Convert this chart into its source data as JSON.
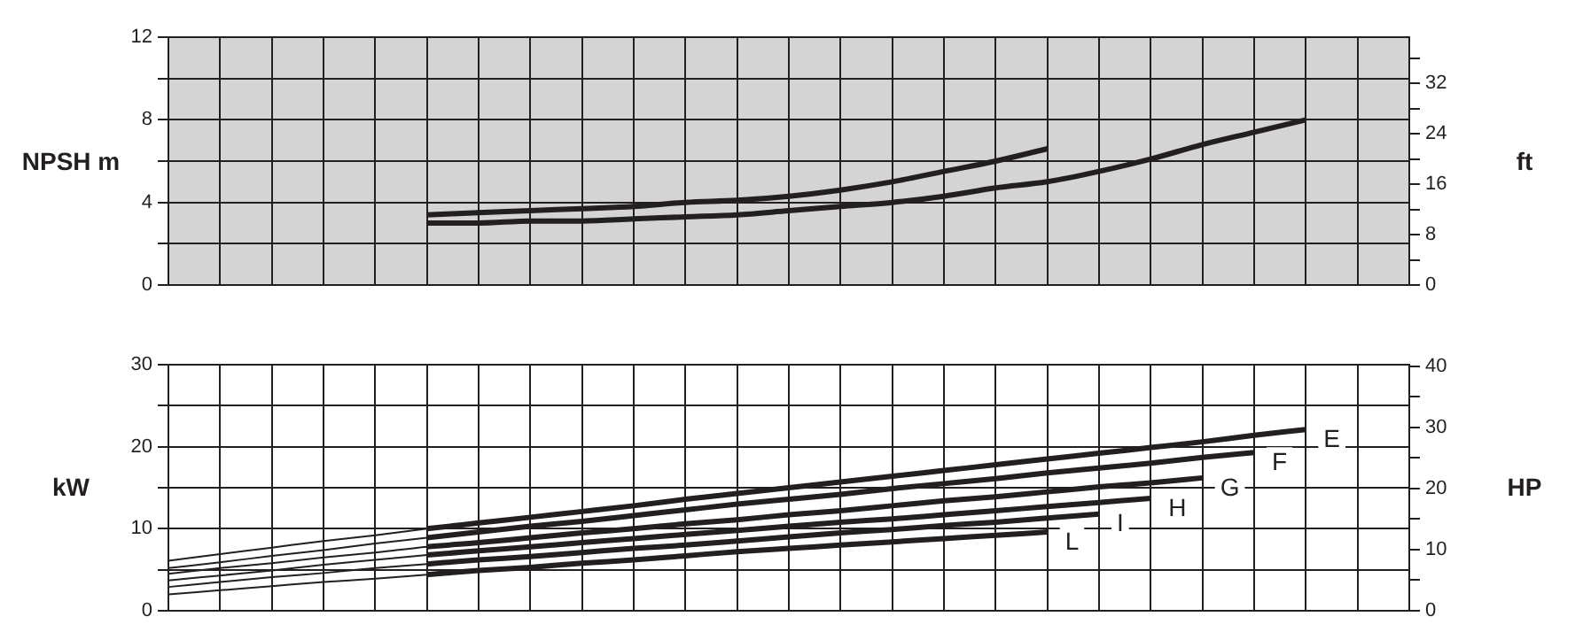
{
  "chart_data": [
    {
      "type": "line",
      "ylabel": "NPSH m",
      "y2label": "ft",
      "categories": [
        null,
        null,
        null,
        null,
        null,
        null,
        null,
        null,
        null,
        null,
        null,
        null,
        null,
        null,
        null,
        null,
        null,
        null,
        null,
        null,
        null,
        null,
        null,
        null,
        null
      ],
      "ylim": [
        0,
        12
      ],
      "yticks": [
        0,
        {
          "value": 2,
          "label": null
        },
        4,
        {
          "value": 6,
          "label": null
        },
        8,
        {
          "value": 10,
          "label": null
        },
        12
      ],
      "y2lim": [
        0,
        39.37
      ],
      "y2ticks": [
        0,
        {
          "value": 4,
          "label": null
        },
        8,
        {
          "value": 12,
          "label": null
        },
        16,
        {
          "value": 20,
          "label": null
        },
        24,
        {
          "value": 28,
          "label": null
        },
        32,
        {
          "value": 36,
          "label": null
        }
      ],
      "grid": true,
      "legend": false,
      "marker": "none",
      "line_style": "solid",
      "series": [
        {
          "color": "#231f20",
          "values": [
            null,
            null,
            null,
            null,
            null,
            3.4,
            3.5,
            3.6,
            3.7,
            3.8,
            4.0,
            4.1,
            4.3,
            4.6,
            5.0,
            5.5,
            6.0,
            6.6,
            null,
            null,
            null,
            null,
            null,
            null,
            null
          ]
        },
        {
          "color": "#231f20",
          "values": [
            null,
            null,
            null,
            null,
            null,
            3.0,
            3.0,
            3.1,
            3.1,
            3.2,
            3.3,
            3.4,
            3.6,
            3.8,
            4.0,
            4.3,
            4.7,
            5.0,
            5.5,
            6.1,
            6.8,
            7.4,
            8.0,
            null,
            null
          ]
        }
      ]
    },
    {
      "type": "line",
      "ylabel": "kW",
      "y2label": "HP",
      "categories": [
        null,
        null,
        null,
        null,
        null,
        null,
        null,
        null,
        null,
        null,
        null,
        null,
        null,
        null,
        null,
        null,
        null,
        null,
        null,
        null,
        null,
        null,
        null,
        null,
        null
      ],
      "ylim": [
        0,
        30
      ],
      "yticks": [
        0,
        {
          "value": 5,
          "label": null
        },
        10,
        {
          "value": 15,
          "label": null
        },
        20,
        {
          "value": 25,
          "label": null
        },
        30
      ],
      "y2lim": [
        0,
        40.23
      ],
      "y2ticks": [
        0,
        {
          "value": 5,
          "label": null
        },
        10,
        {
          "value": 15,
          "label": null
        },
        20,
        {
          "value": 25,
          "label": null
        },
        30,
        {
          "value": 35,
          "label": null
        },
        40
      ],
      "grid": true,
      "legend": false,
      "marker": "none",
      "line_style": "solid",
      "series": [
        {
          "name": "E",
          "color": "#231f20",
          "values": [
            6.1,
            6.9,
            7.7,
            8.5,
            9.2,
            10.0,
            10.7,
            11.4,
            12.1,
            12.8,
            13.6,
            14.3,
            15.0,
            15.7,
            16.4,
            17.1,
            17.8,
            18.5,
            19.2,
            19.9,
            20.6,
            21.4,
            22.1,
            null,
            null
          ]
        },
        {
          "name": "F",
          "color": "#231f20",
          "values": [
            5.2,
            5.9,
            6.7,
            7.4,
            8.2,
            8.9,
            9.6,
            10.3,
            10.9,
            11.6,
            12.3,
            13.0,
            13.6,
            14.2,
            14.9,
            15.5,
            16.1,
            16.8,
            17.4,
            18.0,
            18.7,
            19.3,
            null,
            null,
            null
          ]
        },
        {
          "name": "G",
          "color": "#231f20",
          "values": [
            4.5,
            5.2,
            5.8,
            6.5,
            7.1,
            7.8,
            8.3,
            8.9,
            9.5,
            10.0,
            10.6,
            11.1,
            11.7,
            12.2,
            12.8,
            13.4,
            13.9,
            14.5,
            15.1,
            15.6,
            16.2,
            null,
            null,
            null,
            null
          ]
        },
        {
          "name": "H",
          "color": "#231f20",
          "values": [
            3.7,
            4.3,
            4.9,
            5.6,
            6.2,
            6.8,
            7.3,
            7.8,
            8.3,
            8.8,
            9.3,
            9.8,
            10.3,
            10.8,
            11.2,
            11.7,
            12.2,
            12.7,
            13.2,
            13.7,
            null,
            null,
            null,
            null,
            null
          ]
        },
        {
          "name": "I",
          "color": "#231f20",
          "values": [
            2.9,
            3.5,
            4.1,
            4.6,
            5.2,
            5.7,
            6.2,
            6.6,
            7.1,
            7.6,
            8.0,
            8.5,
            9.0,
            9.5,
            9.9,
            10.4,
            10.8,
            11.3,
            11.8,
            null,
            null,
            null,
            null,
            null,
            null
          ]
        },
        {
          "name": "L",
          "color": "#231f20",
          "values": [
            2.0,
            2.5,
            3.0,
            3.5,
            3.9,
            4.4,
            4.9,
            5.3,
            5.8,
            6.2,
            6.7,
            7.2,
            7.6,
            8.0,
            8.4,
            8.8,
            9.2,
            9.6,
            null,
            null,
            null,
            null,
            null,
            null,
            null
          ]
        }
      ]
    }
  ]
}
